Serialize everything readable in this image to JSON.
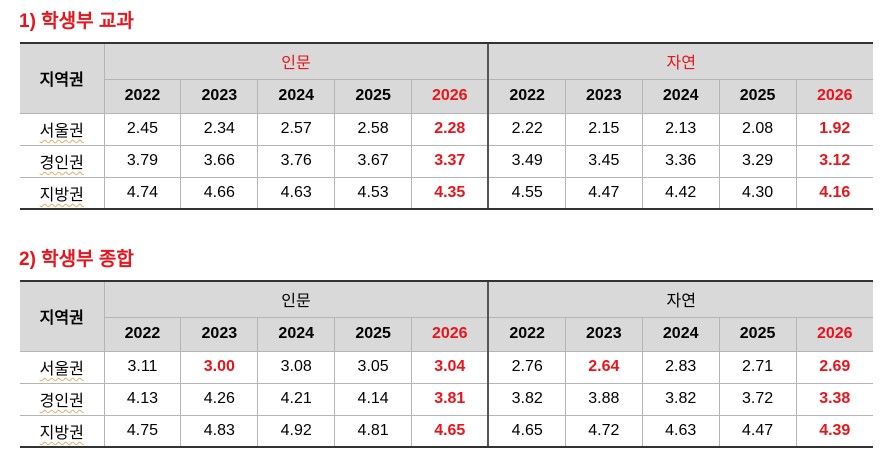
{
  "sections": [
    {
      "title": "1) 학생부 교과",
      "region_header": "지역권",
      "groups": [
        "인문",
        "자연"
      ],
      "years": [
        "2022",
        "2023",
        "2024",
        "2025",
        "2026"
      ],
      "rows": [
        {
          "region": "서울권",
          "values": [
            "2.45",
            "2.34",
            "2.57",
            "2.58",
            "2.28",
            "2.22",
            "2.15",
            "2.13",
            "2.08",
            "1.92"
          ]
        },
        {
          "region": "경인권",
          "values": [
            "3.79",
            "3.66",
            "3.76",
            "3.67",
            "3.37",
            "3.49",
            "3.45",
            "3.36",
            "3.29",
            "3.12"
          ]
        },
        {
          "region": "지방권",
          "values": [
            "4.74",
            "4.66",
            "4.63",
            "4.53",
            "4.35",
            "4.55",
            "4.47",
            "4.42",
            "4.30",
            "4.16"
          ]
        }
      ]
    },
    {
      "title": "2) 학생부 종합",
      "region_header": "지역권",
      "groups": [
        "인문",
        "자연"
      ],
      "years": [
        "2022",
        "2023",
        "2024",
        "2025",
        "2026"
      ],
      "rows": [
        {
          "region": "서울권",
          "values": [
            "3.11",
            "3.00",
            "3.08",
            "3.05",
            "3.04",
            "2.76",
            "2.64",
            "2.83",
            "2.71",
            "2.69"
          ]
        },
        {
          "region": "경인권",
          "values": [
            "4.13",
            "4.26",
            "4.21",
            "4.14",
            "3.81",
            "3.82",
            "3.88",
            "3.82",
            "3.72",
            "3.38"
          ]
        },
        {
          "region": "지방권",
          "values": [
            "4.75",
            "4.83",
            "4.92",
            "4.81",
            "4.65",
            "4.65",
            "4.72",
            "4.63",
            "4.47",
            "4.39"
          ]
        }
      ]
    }
  ],
  "colors": {
    "highlight": "#e8141c",
    "header_bg": "#d9d9d9"
  }
}
